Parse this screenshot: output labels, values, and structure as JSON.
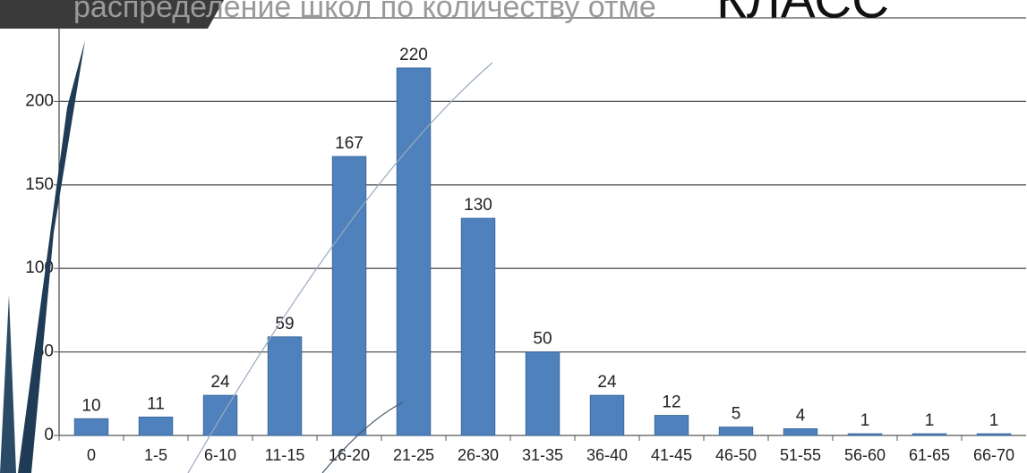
{
  "chart_data": {
    "type": "bar",
    "title": "распределение школ по количеству отме",
    "annotation": "КЛАСС",
    "categories": [
      "0",
      "1-5",
      "6-10",
      "11-15",
      "16-20",
      "21-25",
      "26-30",
      "31-35",
      "36-40",
      "41-45",
      "46-50",
      "51-55",
      "56-60",
      "61-65",
      "66-70"
    ],
    "values": [
      10,
      11,
      24,
      59,
      167,
      220,
      130,
      50,
      24,
      12,
      5,
      4,
      1,
      1,
      1
    ],
    "color": "#4f81bd",
    "ylim": [
      0,
      250
    ],
    "yticks": [
      0,
      50,
      100,
      150,
      200,
      250
    ],
    "grid": true
  }
}
